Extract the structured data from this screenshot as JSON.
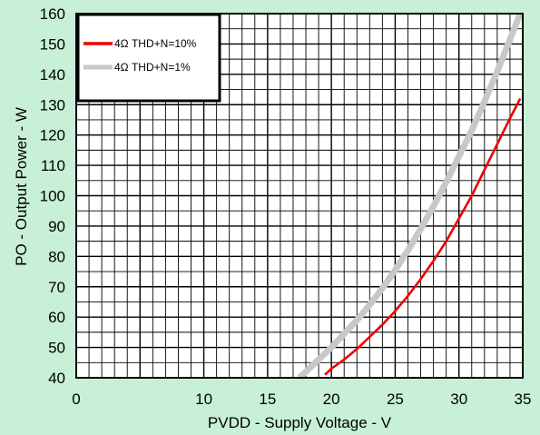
{
  "page": {
    "background": "#c8f0d8"
  },
  "chart_data": {
    "type": "line",
    "xlabel": "PVDD - Supply Voltage - V",
    "ylabel": "PO - Output Power - W",
    "xlim": [
      0,
      35
    ],
    "ylim": [
      40,
      160
    ],
    "x_ticks": [
      0,
      10,
      15,
      20,
      25,
      30,
      35
    ],
    "y_ticks": [
      40,
      50,
      60,
      70,
      80,
      90,
      100,
      110,
      120,
      130,
      140,
      150,
      160
    ],
    "grid": true,
    "plot_background": "#ffffff",
    "legend_position": "top-left",
    "series": [
      {
        "name": "4Ω THD+N=10%",
        "color": "#ee0000",
        "x": [
          19.5,
          20,
          21,
          22,
          23,
          24,
          25,
          26,
          27,
          28,
          29,
          30,
          31,
          32,
          33,
          34,
          34.8
        ],
        "y": [
          41,
          43,
          46,
          49.5,
          53.5,
          57.5,
          62,
          67,
          72.5,
          78.5,
          85,
          92.5,
          100,
          108.5,
          117,
          125.5,
          132
        ]
      },
      {
        "name": "4Ω THD+N=1%",
        "color": "#c8c8c8",
        "x": [
          17.5,
          18,
          19,
          20,
          21,
          22,
          23,
          24,
          25,
          26,
          27,
          28,
          29,
          30,
          31,
          32,
          33,
          34,
          34.8
        ],
        "y": [
          40,
          42,
          46,
          50,
          54.5,
          59,
          64,
          69.5,
          75.5,
          82,
          89,
          96.5,
          104.5,
          113,
          121.5,
          131,
          141,
          151.5,
          160
        ]
      }
    ]
  }
}
